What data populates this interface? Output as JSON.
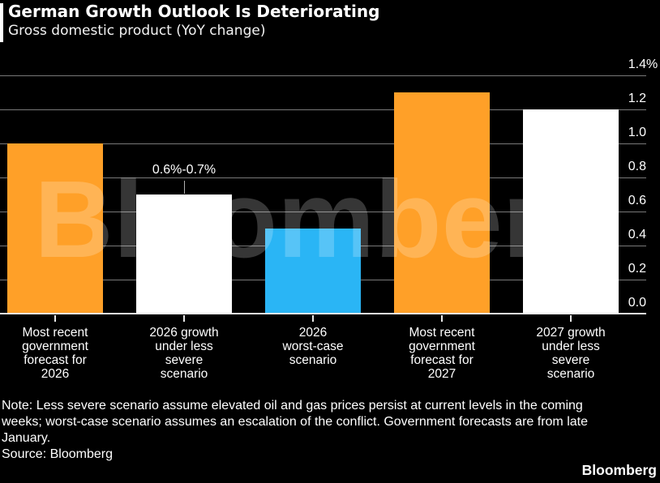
{
  "header": {
    "title": "German Growth Outlook Is Deteriorating",
    "subtitle": "Gross domestic product (YoY change)"
  },
  "chart_data": {
    "type": "bar",
    "title": "German Growth Outlook Is Deteriorating",
    "subtitle": "Gross domestic product (YoY change)",
    "unit": "%",
    "categories": [
      "Most recent government forecast for 2026",
      "2026 growth under less severe scenario",
      "2026 worst-case scenario",
      "Most recent government forecast for 2027",
      "2027 growth under less severe scenario"
    ],
    "category_lines": [
      [
        "Most recent",
        "government",
        "forecast for",
        "2026"
      ],
      [
        "2026 growth",
        "under less",
        "severe",
        "scenario"
      ],
      [
        "2026",
        "worst-case",
        "scenario"
      ],
      [
        "Most recent",
        "government",
        "forecast for",
        "2027"
      ],
      [
        "2027 growth",
        "under less",
        "severe",
        "scenario"
      ]
    ],
    "values": [
      1.0,
      0.7,
      0.5,
      1.3,
      1.2
    ],
    "bar_colors": [
      "#FFA028",
      "#FFFFFF",
      "#2AB5F5",
      "#FFA028",
      "#FFFFFF"
    ],
    "ylim": [
      0,
      1.4
    ],
    "yticks": [
      "1.4%",
      "1.2",
      "1.0",
      "0.8",
      "0.6",
      "0.4",
      "0.2",
      "0.0"
    ],
    "ytick_side": "right",
    "grid": true,
    "legend": "none",
    "annotation": {
      "text": "0.6%-0.7%",
      "bar_index": 1
    }
  },
  "watermark": "Bloomberg",
  "footer": {
    "note_lines": [
      "Note: Less severe scenario assume elevated oil and gas prices persist at current levels in the coming",
      "weeks; worst-case scenario assumes an escalation of the conflict. Government forecasts are from late",
      "January."
    ],
    "source": "Source: Bloomberg",
    "logo": "Bloomberg"
  },
  "colors": {
    "background": "#000000",
    "orange": "#FFA028",
    "blue": "#2AB5F5",
    "white_bar": "#FFFFFF",
    "gridline": "#787878",
    "axis_line": "#E8E8E8",
    "text": "#FFFFFF",
    "watermark": "rgba(255,255,255,0.21)"
  }
}
